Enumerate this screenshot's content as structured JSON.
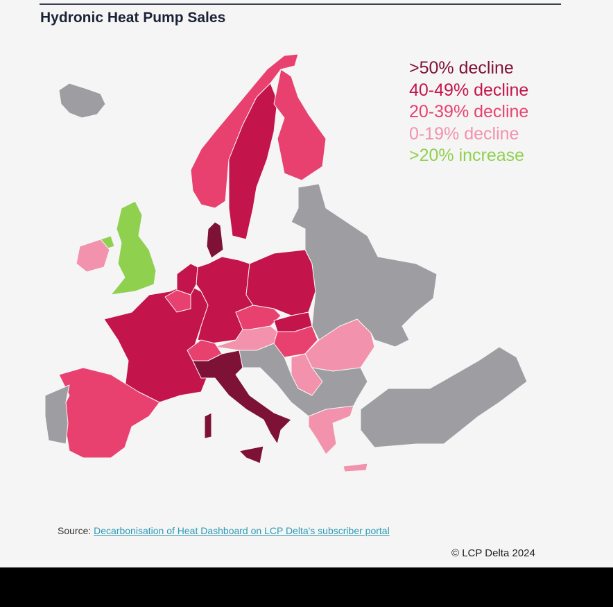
{
  "title": "Hydronic Heat Pump Sales",
  "legend": [
    {
      "key": "gt50",
      "label": ">50% decline",
      "color": "#7e1236"
    },
    {
      "key": "40-49",
      "label": "40-49% decline",
      "color": "#c3154b"
    },
    {
      "key": "20-39",
      "label": "20-39% decline",
      "color": "#e8416f"
    },
    {
      "key": "0-19",
      "label": "0-19% decline",
      "color": "#f292ad"
    },
    {
      "key": "inc",
      "label": ">20% increase",
      "color": "#8fd14f"
    }
  ],
  "no_data_color": "#9e9da2",
  "regions": [
    {
      "id": "iceland",
      "category": "none"
    },
    {
      "id": "norway",
      "category": "20-39"
    },
    {
      "id": "sweden",
      "category": "40-49"
    },
    {
      "id": "finland",
      "category": "20-39"
    },
    {
      "id": "denmark",
      "category": "gt50"
    },
    {
      "id": "united-kingdom",
      "category": "inc"
    },
    {
      "id": "northern-ireland",
      "category": "inc"
    },
    {
      "id": "ireland",
      "category": "0-19"
    },
    {
      "id": "france",
      "category": "40-49"
    },
    {
      "id": "belgium",
      "category": "20-39"
    },
    {
      "id": "netherlands",
      "category": "40-49"
    },
    {
      "id": "germany",
      "category": "40-49"
    },
    {
      "id": "poland",
      "category": "40-49"
    },
    {
      "id": "czechia",
      "category": "20-39"
    },
    {
      "id": "slovakia",
      "category": "40-49"
    },
    {
      "id": "austria",
      "category": "0-19"
    },
    {
      "id": "hungary",
      "category": "20-39"
    },
    {
      "id": "switzerland",
      "category": "20-39"
    },
    {
      "id": "italy",
      "category": "gt50"
    },
    {
      "id": "sicily",
      "category": "gt50"
    },
    {
      "id": "sardinia",
      "category": "gt50"
    },
    {
      "id": "spain",
      "category": "20-39"
    },
    {
      "id": "portugal",
      "category": "none"
    },
    {
      "id": "romania",
      "category": "0-19"
    },
    {
      "id": "serbia",
      "category": "0-19"
    },
    {
      "id": "greece",
      "category": "0-19"
    },
    {
      "id": "crete",
      "category": "0-19"
    },
    {
      "id": "eastern-europe",
      "category": "none"
    },
    {
      "id": "balkans",
      "category": "none"
    },
    {
      "id": "turkey",
      "category": "none"
    }
  ],
  "source": {
    "prefix": "Source: ",
    "link1": "Decarbonisation of Heat Dashboard",
    "link2": " on LCP Delta's subscriber portal"
  },
  "copyright": "© LCP Delta 2024"
}
